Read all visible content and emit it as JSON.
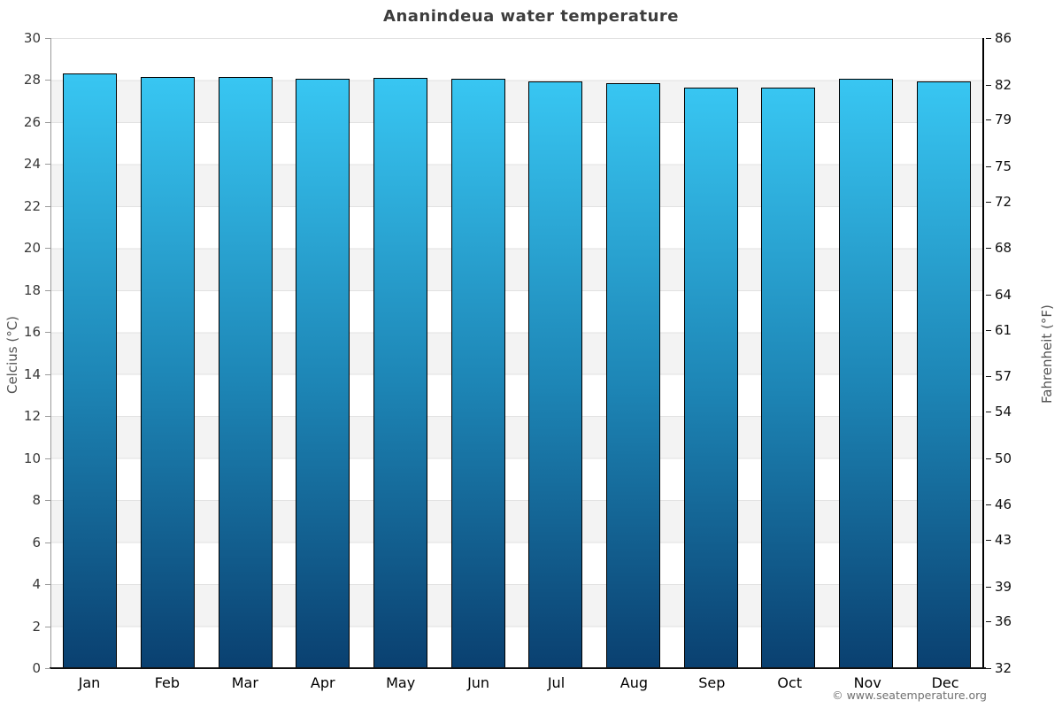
{
  "title": "Ananindeua water temperature",
  "footer": {
    "copyright": "© www.seatemperature.org"
  },
  "chart_data": {
    "type": "bar",
    "title": "Ananindeua water temperature",
    "categories": [
      "Jan",
      "Feb",
      "Mar",
      "Apr",
      "May",
      "Jun",
      "Jul",
      "Aug",
      "Sep",
      "Oct",
      "Nov",
      "Dec"
    ],
    "values": [
      28.3,
      28.15,
      28.15,
      28.05,
      28.1,
      28.05,
      27.95,
      27.85,
      27.65,
      27.65,
      28.05,
      27.95
    ],
    "unit": "°C",
    "xlabel": "",
    "ylabel_left": "Celcius (°C)",
    "ylabel_right": "Fahrenheit (°F)",
    "ylim_celsius": [
      0,
      30
    ],
    "ylim_fahrenheit": [
      32,
      86
    ],
    "yticks_celsius": [
      0,
      2,
      4,
      6,
      8,
      10,
      12,
      14,
      16,
      18,
      20,
      22,
      24,
      26,
      28,
      30
    ],
    "yticks_fahrenheit": [
      32,
      36,
      39,
      43,
      46,
      50,
      54,
      57,
      61,
      64,
      68,
      72,
      75,
      79,
      82,
      86
    ],
    "grid": "horizontal gridlines and alternating shaded bands every 2 °C",
    "legend": "none",
    "bar_color_top": "#38c6f2",
    "bar_color_bottom": "#0a4070",
    "bar_border_color": "#000000",
    "band_color": "#f3f3f3",
    "gridline_color": "#e2e2e2",
    "title_color": "#3d3d3d"
  }
}
